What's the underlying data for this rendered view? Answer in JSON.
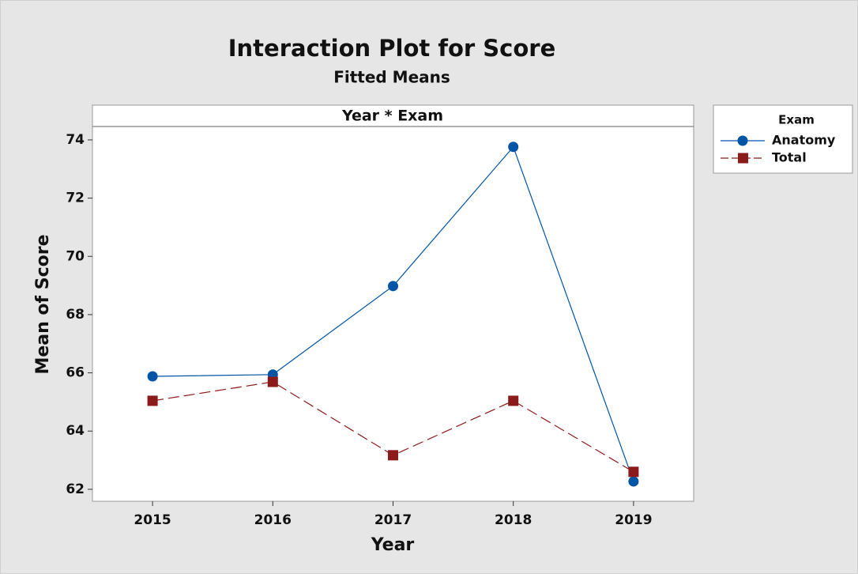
{
  "chart_data": {
    "type": "line",
    "title": "Interaction Plot for Score",
    "subtitle": "Fitted Means",
    "panel_label": "Year * Exam",
    "xlabel": "Year",
    "ylabel": "Mean of Score",
    "legend_title": "Exam",
    "legend_position": "right",
    "categories": [
      "2015",
      "2016",
      "2017",
      "2018",
      "2019"
    ],
    "series": [
      {
        "name": "Anatomy",
        "color": "#0054a6",
        "marker": "circle",
        "dash": "solid",
        "values": [
          65.88,
          65.94,
          68.98,
          73.76,
          62.27
        ]
      },
      {
        "name": "Total",
        "color": "#8b1a1a",
        "marker": "square",
        "dash": "dashed",
        "values": [
          65.04,
          65.69,
          63.17,
          65.04,
          62.6
        ]
      }
    ],
    "ylim": [
      61.59,
      74.46
    ],
    "yticks": [
      62,
      64,
      66,
      68,
      70,
      72,
      74
    ]
  }
}
